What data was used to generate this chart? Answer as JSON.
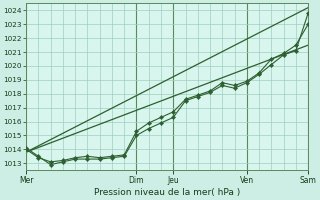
{
  "xlabel": "Pression niveau de la mer( hPa )",
  "bg_color": "#cceee4",
  "plot_bg_color": "#d8f5ee",
  "grid_color": "#9ecfbf",
  "line_color": "#2d6030",
  "vline_color": "#5a8a5a",
  "ylim": [
    1012.5,
    1024.5
  ],
  "xlim": [
    0,
    23
  ],
  "yticks": [
    1013,
    1014,
    1015,
    1016,
    1017,
    1018,
    1019,
    1020,
    1021,
    1022,
    1023,
    1024
  ],
  "xtick_labels": [
    "Mer",
    "Dim",
    "Jeu",
    "Ven",
    "Sam"
  ],
  "xtick_positions": [
    0,
    9,
    12,
    18,
    23
  ],
  "vline_positions": [
    0,
    9,
    12,
    18,
    23
  ],
  "line1_x": [
    0,
    1,
    2,
    3,
    4,
    5,
    6,
    7,
    8,
    9,
    10,
    11,
    12,
    13,
    14,
    15,
    16,
    17,
    18,
    19,
    20,
    21,
    22,
    23
  ],
  "line1_y": [
    1014.1,
    1013.5,
    1012.9,
    1013.1,
    1013.3,
    1013.3,
    1013.3,
    1013.4,
    1013.5,
    1015.0,
    1015.5,
    1015.9,
    1016.3,
    1017.5,
    1017.8,
    1018.1,
    1018.6,
    1018.4,
    1018.8,
    1019.4,
    1020.1,
    1020.8,
    1021.1,
    1023.8
  ],
  "line2_x": [
    0,
    1,
    2,
    3,
    4,
    5,
    6,
    7,
    8,
    9,
    10,
    11,
    12,
    13,
    14,
    15,
    16,
    17,
    18,
    19,
    20,
    21,
    22,
    23
  ],
  "line2_y": [
    1014.0,
    1013.4,
    1013.1,
    1013.2,
    1013.4,
    1013.5,
    1013.4,
    1013.5,
    1013.6,
    1015.3,
    1015.9,
    1016.3,
    1016.7,
    1017.6,
    1017.9,
    1018.2,
    1018.8,
    1018.6,
    1018.9,
    1019.5,
    1020.5,
    1020.9,
    1021.5,
    1023.0
  ],
  "line3_x": [
    0,
    23
  ],
  "line3_y": [
    1013.8,
    1021.5
  ],
  "line4_x": [
    0,
    23
  ],
  "line4_y": [
    1013.8,
    1024.2
  ]
}
